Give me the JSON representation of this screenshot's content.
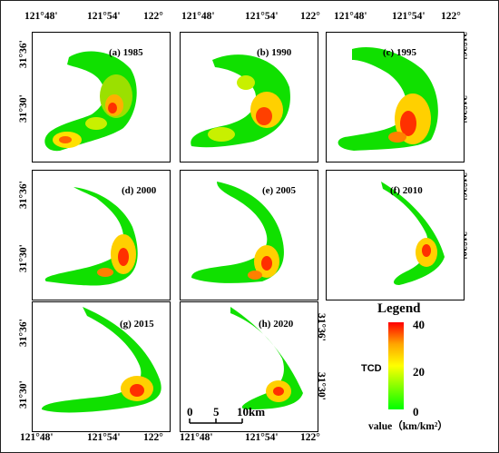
{
  "axes": {
    "lon_ticks": [
      "121°48'",
      "121°54'",
      "122°"
    ],
    "lat_ticks": [
      "31°36'",
      "31°30'"
    ]
  },
  "panels": [
    {
      "label": "(a) 1985"
    },
    {
      "label": "(b) 1990"
    },
    {
      "label": "(c) 1995"
    },
    {
      "label": "(d) 2000"
    },
    {
      "label": "(e) 2005"
    },
    {
      "label": "(f) 2010"
    },
    {
      "label": "(g) 2015"
    },
    {
      "label": "(h) 2020"
    }
  ],
  "legend": {
    "title": "Legend",
    "variable": "TCD",
    "max_label": "40",
    "mid_label": "20",
    "min_label": "0",
    "unit_label": "value（km/km²）",
    "colors": [
      "#ff0000",
      "#ffa500",
      "#ffff00",
      "#7fff00",
      "#00ff00"
    ]
  },
  "scale_bar": {
    "labels": [
      "0",
      "5",
      "10km"
    ]
  }
}
